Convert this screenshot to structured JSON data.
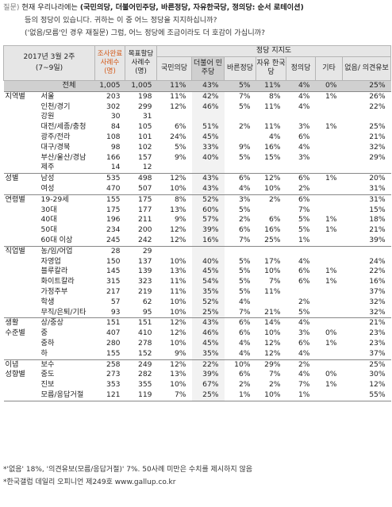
{
  "question": {
    "label": "질문)",
    "line1_prefix": "현재 우리나라에는 ",
    "line1_bold": "(국민의당, 더불어민주당, 바른정당, 자유한국당, 정의당: 순서 로테이션)",
    "line2": "등의 정당이 있습니다. 귀하는 이 중 어느 정당을 지지하십니까?",
    "line3": "('없음/모름'인 경우 재질문) 그럼, 어느 정당에 조금이라도 더 호감이 가십니까?"
  },
  "table": {
    "period_label": "2017년 3월 2주",
    "period_dates": "(7~9일)",
    "col_survey": "조사완료 사례수 (명)",
    "col_weight": "목표할당 사례수 (명)",
    "group_header": "정당 지지도",
    "parties": [
      "국민의당",
      "더불어 민주당",
      "바른정당",
      "자유 한국당",
      "정의당",
      "기타",
      "없음/ 의견유보"
    ],
    "total": {
      "label": "전체",
      "n1": "1,005",
      "n2": "1,005",
      "v": [
        "11%",
        "43%",
        "5%",
        "11%",
        "4%",
        "0%",
        "25%"
      ]
    },
    "groups": [
      {
        "name": "지역별",
        "rows": [
          {
            "label": "서울",
            "n1": "203",
            "n2": "198",
            "v": [
              "11%",
              "42%",
              "7%",
              "8%",
              "4%",
              "1%",
              "26%"
            ]
          },
          {
            "label": "인천/경기",
            "n1": "302",
            "n2": "299",
            "v": [
              "12%",
              "46%",
              "5%",
              "11%",
              "4%",
              "",
              "22%"
            ]
          },
          {
            "label": "강원",
            "n1": "30",
            "n2": "31",
            "v": [
              "",
              "",
              "",
              "",
              "",
              "",
              ""
            ]
          },
          {
            "label": "대전/세종/충청",
            "n1": "84",
            "n2": "105",
            "v": [
              "6%",
              "51%",
              "2%",
              "11%",
              "3%",
              "1%",
              "25%"
            ]
          },
          {
            "label": "광주/전라",
            "n1": "108",
            "n2": "101",
            "v": [
              "24%",
              "45%",
              "",
              "4%",
              "6%",
              "",
              "21%"
            ]
          },
          {
            "label": "대구/경북",
            "n1": "98",
            "n2": "102",
            "v": [
              "5%",
              "33%",
              "9%",
              "16%",
              "4%",
              "",
              "32%"
            ]
          },
          {
            "label": "부산/울산/경남",
            "n1": "166",
            "n2": "157",
            "v": [
              "9%",
              "40%",
              "5%",
              "15%",
              "3%",
              "",
              "29%"
            ]
          },
          {
            "label": "제주",
            "n1": "14",
            "n2": "12",
            "v": [
              "",
              "",
              "",
              "",
              "",
              "",
              ""
            ]
          }
        ]
      },
      {
        "name": "성별",
        "rows": [
          {
            "label": "남성",
            "n1": "535",
            "n2": "498",
            "v": [
              "12%",
              "43%",
              "6%",
              "12%",
              "6%",
              "1%",
              "20%"
            ]
          },
          {
            "label": "여성",
            "n1": "470",
            "n2": "507",
            "v": [
              "10%",
              "43%",
              "4%",
              "10%",
              "2%",
              "",
              "31%"
            ]
          }
        ]
      },
      {
        "name": "연령별",
        "rows": [
          {
            "label": "19-29세",
            "n1": "155",
            "n2": "175",
            "v": [
              "8%",
              "52%",
              "3%",
              "2%",
              "6%",
              "",
              "31%"
            ]
          },
          {
            "label": "30대",
            "n1": "175",
            "n2": "177",
            "v": [
              "13%",
              "60%",
              "5%",
              "",
              "7%",
              "",
              "15%"
            ]
          },
          {
            "label": "40대",
            "n1": "196",
            "n2": "211",
            "v": [
              "9%",
              "57%",
              "2%",
              "6%",
              "5%",
              "1%",
              "18%"
            ]
          },
          {
            "label": "50대",
            "n1": "234",
            "n2": "200",
            "v": [
              "12%",
              "39%",
              "6%",
              "16%",
              "5%",
              "1%",
              "21%"
            ]
          },
          {
            "label": "60대 이상",
            "n1": "245",
            "n2": "242",
            "v": [
              "12%",
              "16%",
              "7%",
              "25%",
              "1%",
              "",
              "39%"
            ]
          }
        ]
      },
      {
        "name": "직업별",
        "rows": [
          {
            "label": "농/임/어업",
            "n1": "28",
            "n2": "29",
            "v": [
              "",
              "",
              "",
              "",
              "",
              "",
              ""
            ]
          },
          {
            "label": "자영업",
            "n1": "150",
            "n2": "137",
            "v": [
              "10%",
              "40%",
              "5%",
              "17%",
              "4%",
              "",
              "24%"
            ]
          },
          {
            "label": "블루칼라",
            "n1": "145",
            "n2": "139",
            "v": [
              "13%",
              "45%",
              "5%",
              "10%",
              "6%",
              "1%",
              "22%"
            ]
          },
          {
            "label": "화이트칼라",
            "n1": "315",
            "n2": "323",
            "v": [
              "11%",
              "54%",
              "5%",
              "7%",
              "6%",
              "1%",
              "16%"
            ]
          },
          {
            "label": "가정주부",
            "n1": "217",
            "n2": "219",
            "v": [
              "11%",
              "35%",
              "5%",
              "11%",
              "",
              "",
              "37%"
            ]
          },
          {
            "label": "학생",
            "n1": "57",
            "n2": "62",
            "v": [
              "10%",
              "52%",
              "4%",
              "",
              "2%",
              "",
              "32%"
            ]
          },
          {
            "label": "무직/은퇴/기타",
            "n1": "93",
            "n2": "95",
            "v": [
              "10%",
              "25%",
              "7%",
              "21%",
              "5%",
              "",
              "32%"
            ]
          }
        ]
      },
      {
        "name": "생활 수준별",
        "rows": [
          {
            "label": "상/중상",
            "n1": "151",
            "n2": "151",
            "v": [
              "12%",
              "43%",
              "6%",
              "14%",
              "4%",
              "",
              "21%"
            ]
          },
          {
            "label": "중",
            "n1": "407",
            "n2": "410",
            "v": [
              "12%",
              "46%",
              "6%",
              "10%",
              "3%",
              "0%",
              "23%"
            ]
          },
          {
            "label": "중하",
            "n1": "280",
            "n2": "278",
            "v": [
              "10%",
              "45%",
              "4%",
              "12%",
              "6%",
              "1%",
              "23%"
            ]
          },
          {
            "label": "하",
            "n1": "155",
            "n2": "152",
            "v": [
              "9%",
              "35%",
              "4%",
              "12%",
              "4%",
              "",
              "37%"
            ]
          }
        ]
      },
      {
        "name": "이념 성향별",
        "rows": [
          {
            "label": "보수",
            "n1": "258",
            "n2": "249",
            "v": [
              "12%",
              "22%",
              "10%",
              "29%",
              "2%",
              "",
              "25%"
            ]
          },
          {
            "label": "중도",
            "n1": "273",
            "n2": "282",
            "v": [
              "13%",
              "39%",
              "6%",
              "7%",
              "4%",
              "0%",
              "30%"
            ]
          },
          {
            "label": "진보",
            "n1": "353",
            "n2": "355",
            "v": [
              "10%",
              "67%",
              "2%",
              "2%",
              "7%",
              "1%",
              "12%"
            ]
          },
          {
            "label": "모름/응답거절",
            "n1": "121",
            "n2": "119",
            "v": [
              "7%",
              "25%",
              "1%",
              "10%",
              "1%",
              "",
              "55%"
            ]
          }
        ]
      }
    ]
  },
  "notes": {
    "line1": "*'없음' 18%, '의견유보(모름/응답거절)' 7%. 50사례 미만은 수치를 제시하지 않음",
    "line2": "*한국갤럽 데일리 오피니언 제249호 www.gallup.co.kr"
  },
  "colors": {
    "header_bg": "#e6e6e6",
    "total_bg": "#d0d0d0",
    "accent_orange": "#d45a1a"
  }
}
